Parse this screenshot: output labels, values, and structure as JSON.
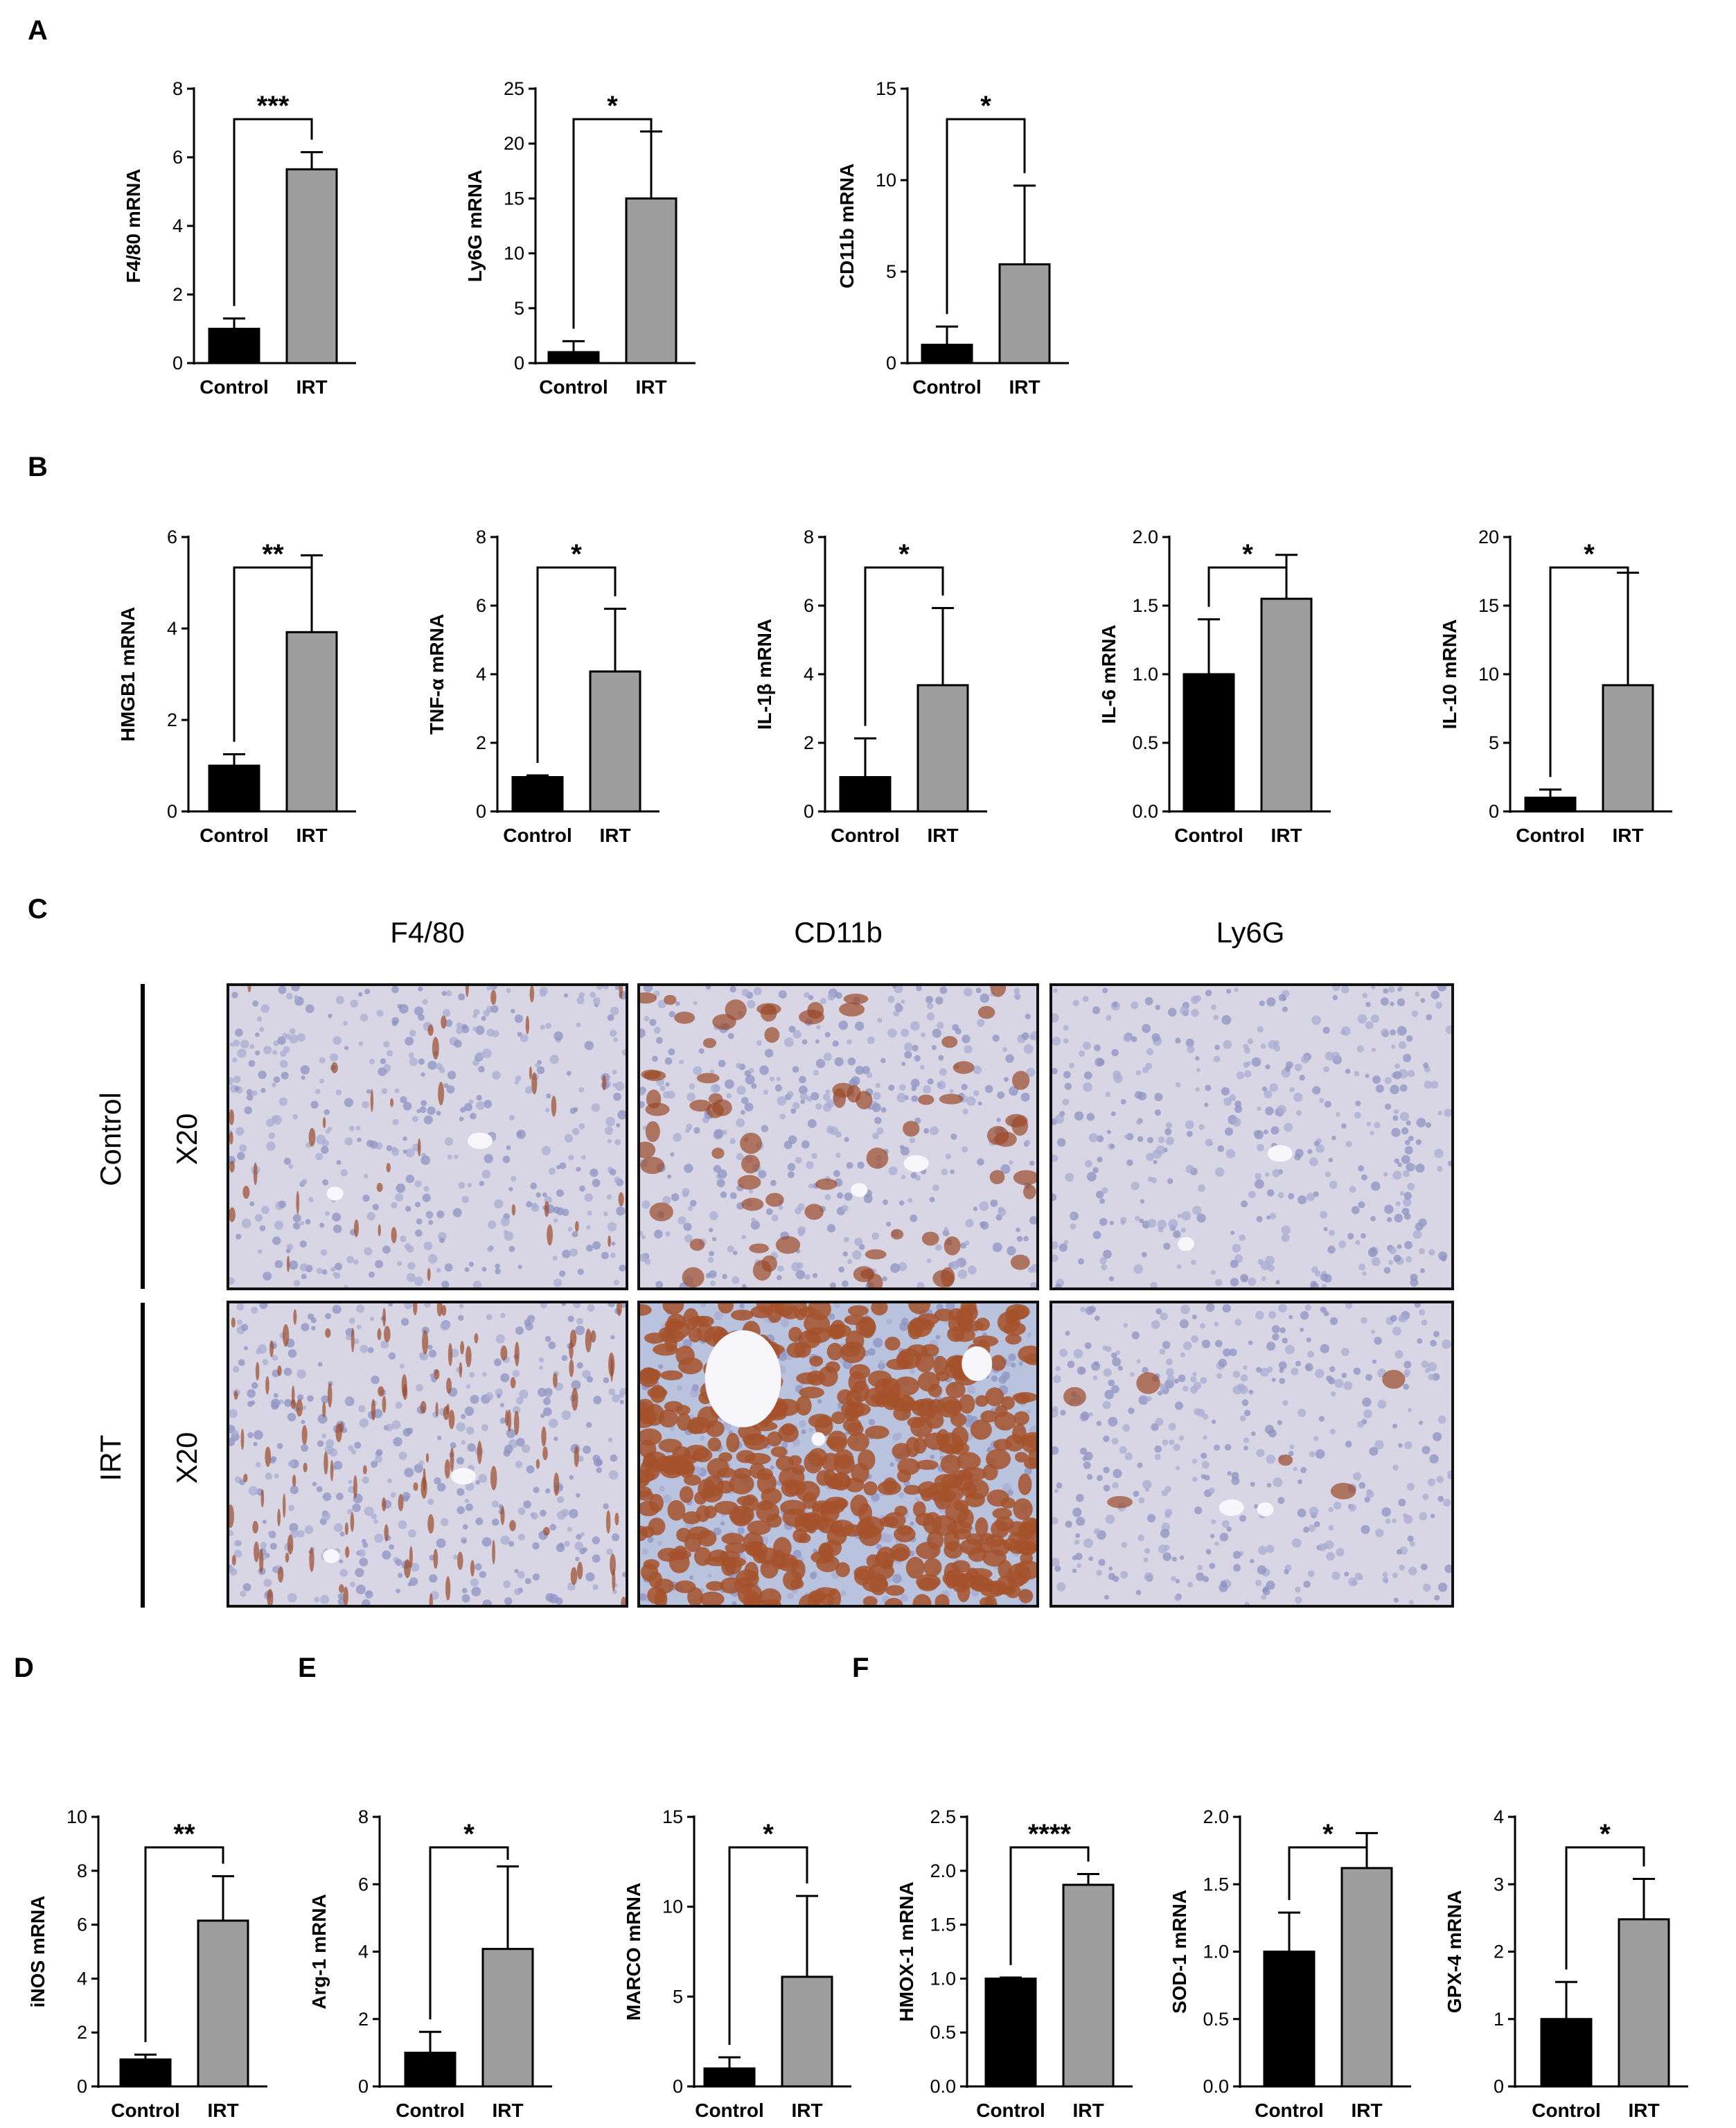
{
  "panel_letters": {
    "A": "A",
    "B": "B",
    "C": "C",
    "D": "D",
    "E": "E",
    "F": "F"
  },
  "colors": {
    "control": "#000000",
    "irt": "#9e9e9e"
  },
  "histology": {
    "columns": [
      "F4/80",
      "CD11b",
      "Ly6G"
    ],
    "rows": [
      {
        "label": "Control",
        "magnification": "X20"
      },
      {
        "label": "IRT",
        "magnification": "X20"
      }
    ],
    "stain_colors": {
      "hematoxylin": "#c9cbe0",
      "dab": "#9b4a2a"
    }
  },
  "chart_data": [
    {
      "id": "f480",
      "type": "bar",
      "categories": [
        "Control",
        "IRT"
      ],
      "values": [
        1.0,
        5.65
      ],
      "errors": [
        0.3,
        0.5
      ],
      "ylabel": "F4/80 mRNA",
      "ylim": [
        0,
        8
      ],
      "yticks": [
        "0",
        "2",
        "4",
        "6",
        "8"
      ],
      "significance": "***"
    },
    {
      "id": "ly6g",
      "type": "bar",
      "categories": [
        "Control",
        "IRT"
      ],
      "values": [
        1.0,
        15.0
      ],
      "errors": [
        1.0,
        6.1
      ],
      "ylabel": "Ly6G mRNA",
      "ylim": [
        0,
        25
      ],
      "yticks": [
        "0",
        "5",
        "10",
        "15",
        "20",
        "25"
      ],
      "significance": "*"
    },
    {
      "id": "cd11b",
      "type": "bar",
      "categories": [
        "Control",
        "IRT"
      ],
      "values": [
        1.0,
        5.4
      ],
      "errors": [
        1.0,
        4.3
      ],
      "ylabel": "CD11b mRNA",
      "ylim": [
        0,
        15
      ],
      "yticks": [
        "0",
        "5",
        "10",
        "15"
      ],
      "significance": "*"
    },
    {
      "id": "hmgb1",
      "type": "bar",
      "categories": [
        "Control",
        "IRT"
      ],
      "values": [
        1.0,
        3.92
      ],
      "errors": [
        0.25,
        1.68
      ],
      "ylabel": "HMGB1 mRNA",
      "ylim": [
        0,
        6
      ],
      "yticks": [
        "0",
        "2",
        "4",
        "6"
      ],
      "significance": "**"
    },
    {
      "id": "tnfa",
      "type": "bar",
      "categories": [
        "Control",
        "IRT"
      ],
      "values": [
        1.0,
        4.08
      ],
      "errors": [
        0.05,
        1.83
      ],
      "ylabel": "TNF-α mRNA",
      "ylim": [
        0,
        8
      ],
      "yticks": [
        "0",
        "2",
        "4",
        "6",
        "8"
      ],
      "significance": "*"
    },
    {
      "id": "il1b",
      "type": "bar",
      "categories": [
        "Control",
        "IRT"
      ],
      "values": [
        1.0,
        3.68
      ],
      "errors": [
        1.13,
        2.25
      ],
      "ylabel": "IL-1β mRNA",
      "ylim": [
        0,
        8
      ],
      "yticks": [
        "0",
        "2",
        "4",
        "6",
        "8"
      ],
      "significance": "*"
    },
    {
      "id": "il6",
      "type": "bar",
      "categories": [
        "Control",
        "IRT"
      ],
      "values": [
        1.0,
        1.55
      ],
      "errors": [
        0.4,
        0.32
      ],
      "ylabel": "IL-6 mRNA",
      "ylim": [
        0,
        2.0
      ],
      "yticks": [
        "0.0",
        "0.5",
        "1.0",
        "1.5",
        "2.0"
      ],
      "significance": "*"
    },
    {
      "id": "il10",
      "type": "bar",
      "categories": [
        "Control",
        "IRT"
      ],
      "values": [
        1.0,
        9.2
      ],
      "errors": [
        0.6,
        8.2
      ],
      "ylabel": "IL-10 mRNA",
      "ylim": [
        0,
        20
      ],
      "yticks": [
        "0",
        "5",
        "10",
        "15",
        "20"
      ],
      "significance": "*"
    },
    {
      "id": "inos",
      "type": "bar",
      "categories": [
        "Control",
        "IRT"
      ],
      "values": [
        1.0,
        6.15
      ],
      "errors": [
        0.18,
        1.65
      ],
      "ylabel": "iNOS mRNA",
      "ylim": [
        0,
        10
      ],
      "yticks": [
        "0",
        "2",
        "4",
        "6",
        "8",
        "10"
      ],
      "significance": "**"
    },
    {
      "id": "arg1",
      "type": "bar",
      "categories": [
        "Control",
        "IRT"
      ],
      "values": [
        1.0,
        4.08
      ],
      "errors": [
        0.62,
        2.45
      ],
      "ylabel": "Arg-1 mRNA",
      "ylim": [
        0,
        8
      ],
      "yticks": [
        "0",
        "2",
        "4",
        "6",
        "8"
      ],
      "significance": "*"
    },
    {
      "id": "marco",
      "type": "bar",
      "categories": [
        "Control",
        "IRT"
      ],
      "values": [
        1.0,
        6.1
      ],
      "errors": [
        0.62,
        4.5
      ],
      "ylabel": "MARCO mRNA",
      "ylim": [
        0,
        15
      ],
      "yticks": [
        "0",
        "5",
        "10",
        "15"
      ],
      "significance": "*"
    },
    {
      "id": "hmox1",
      "type": "bar",
      "categories": [
        "Control",
        "IRT"
      ],
      "values": [
        1.0,
        1.87
      ],
      "errors": [
        0.01,
        0.1
      ],
      "ylabel": "HMOX-1 mRNA",
      "ylim": [
        0,
        2.5
      ],
      "yticks": [
        "0.0",
        "0.5",
        "1.0",
        "1.5",
        "2.0",
        "2.5"
      ],
      "significance": "****"
    },
    {
      "id": "sod1",
      "type": "bar",
      "categories": [
        "Control",
        "IRT"
      ],
      "values": [
        1.0,
        1.62
      ],
      "errors": [
        0.29,
        0.26
      ],
      "ylabel": "SOD-1 mRNA",
      "ylim": [
        0,
        2.0
      ],
      "yticks": [
        "0.0",
        "0.5",
        "1.0",
        "1.5",
        "2.0"
      ],
      "significance": "*"
    },
    {
      "id": "gpx4",
      "type": "bar",
      "categories": [
        "Control",
        "IRT"
      ],
      "values": [
        1.0,
        2.48
      ],
      "errors": [
        0.55,
        0.6
      ],
      "ylabel": "GPX-4 mRNA",
      "ylim": [
        0,
        4
      ],
      "yticks": [
        "0",
        "1",
        "2",
        "3",
        "4"
      ],
      "significance": "*"
    }
  ]
}
